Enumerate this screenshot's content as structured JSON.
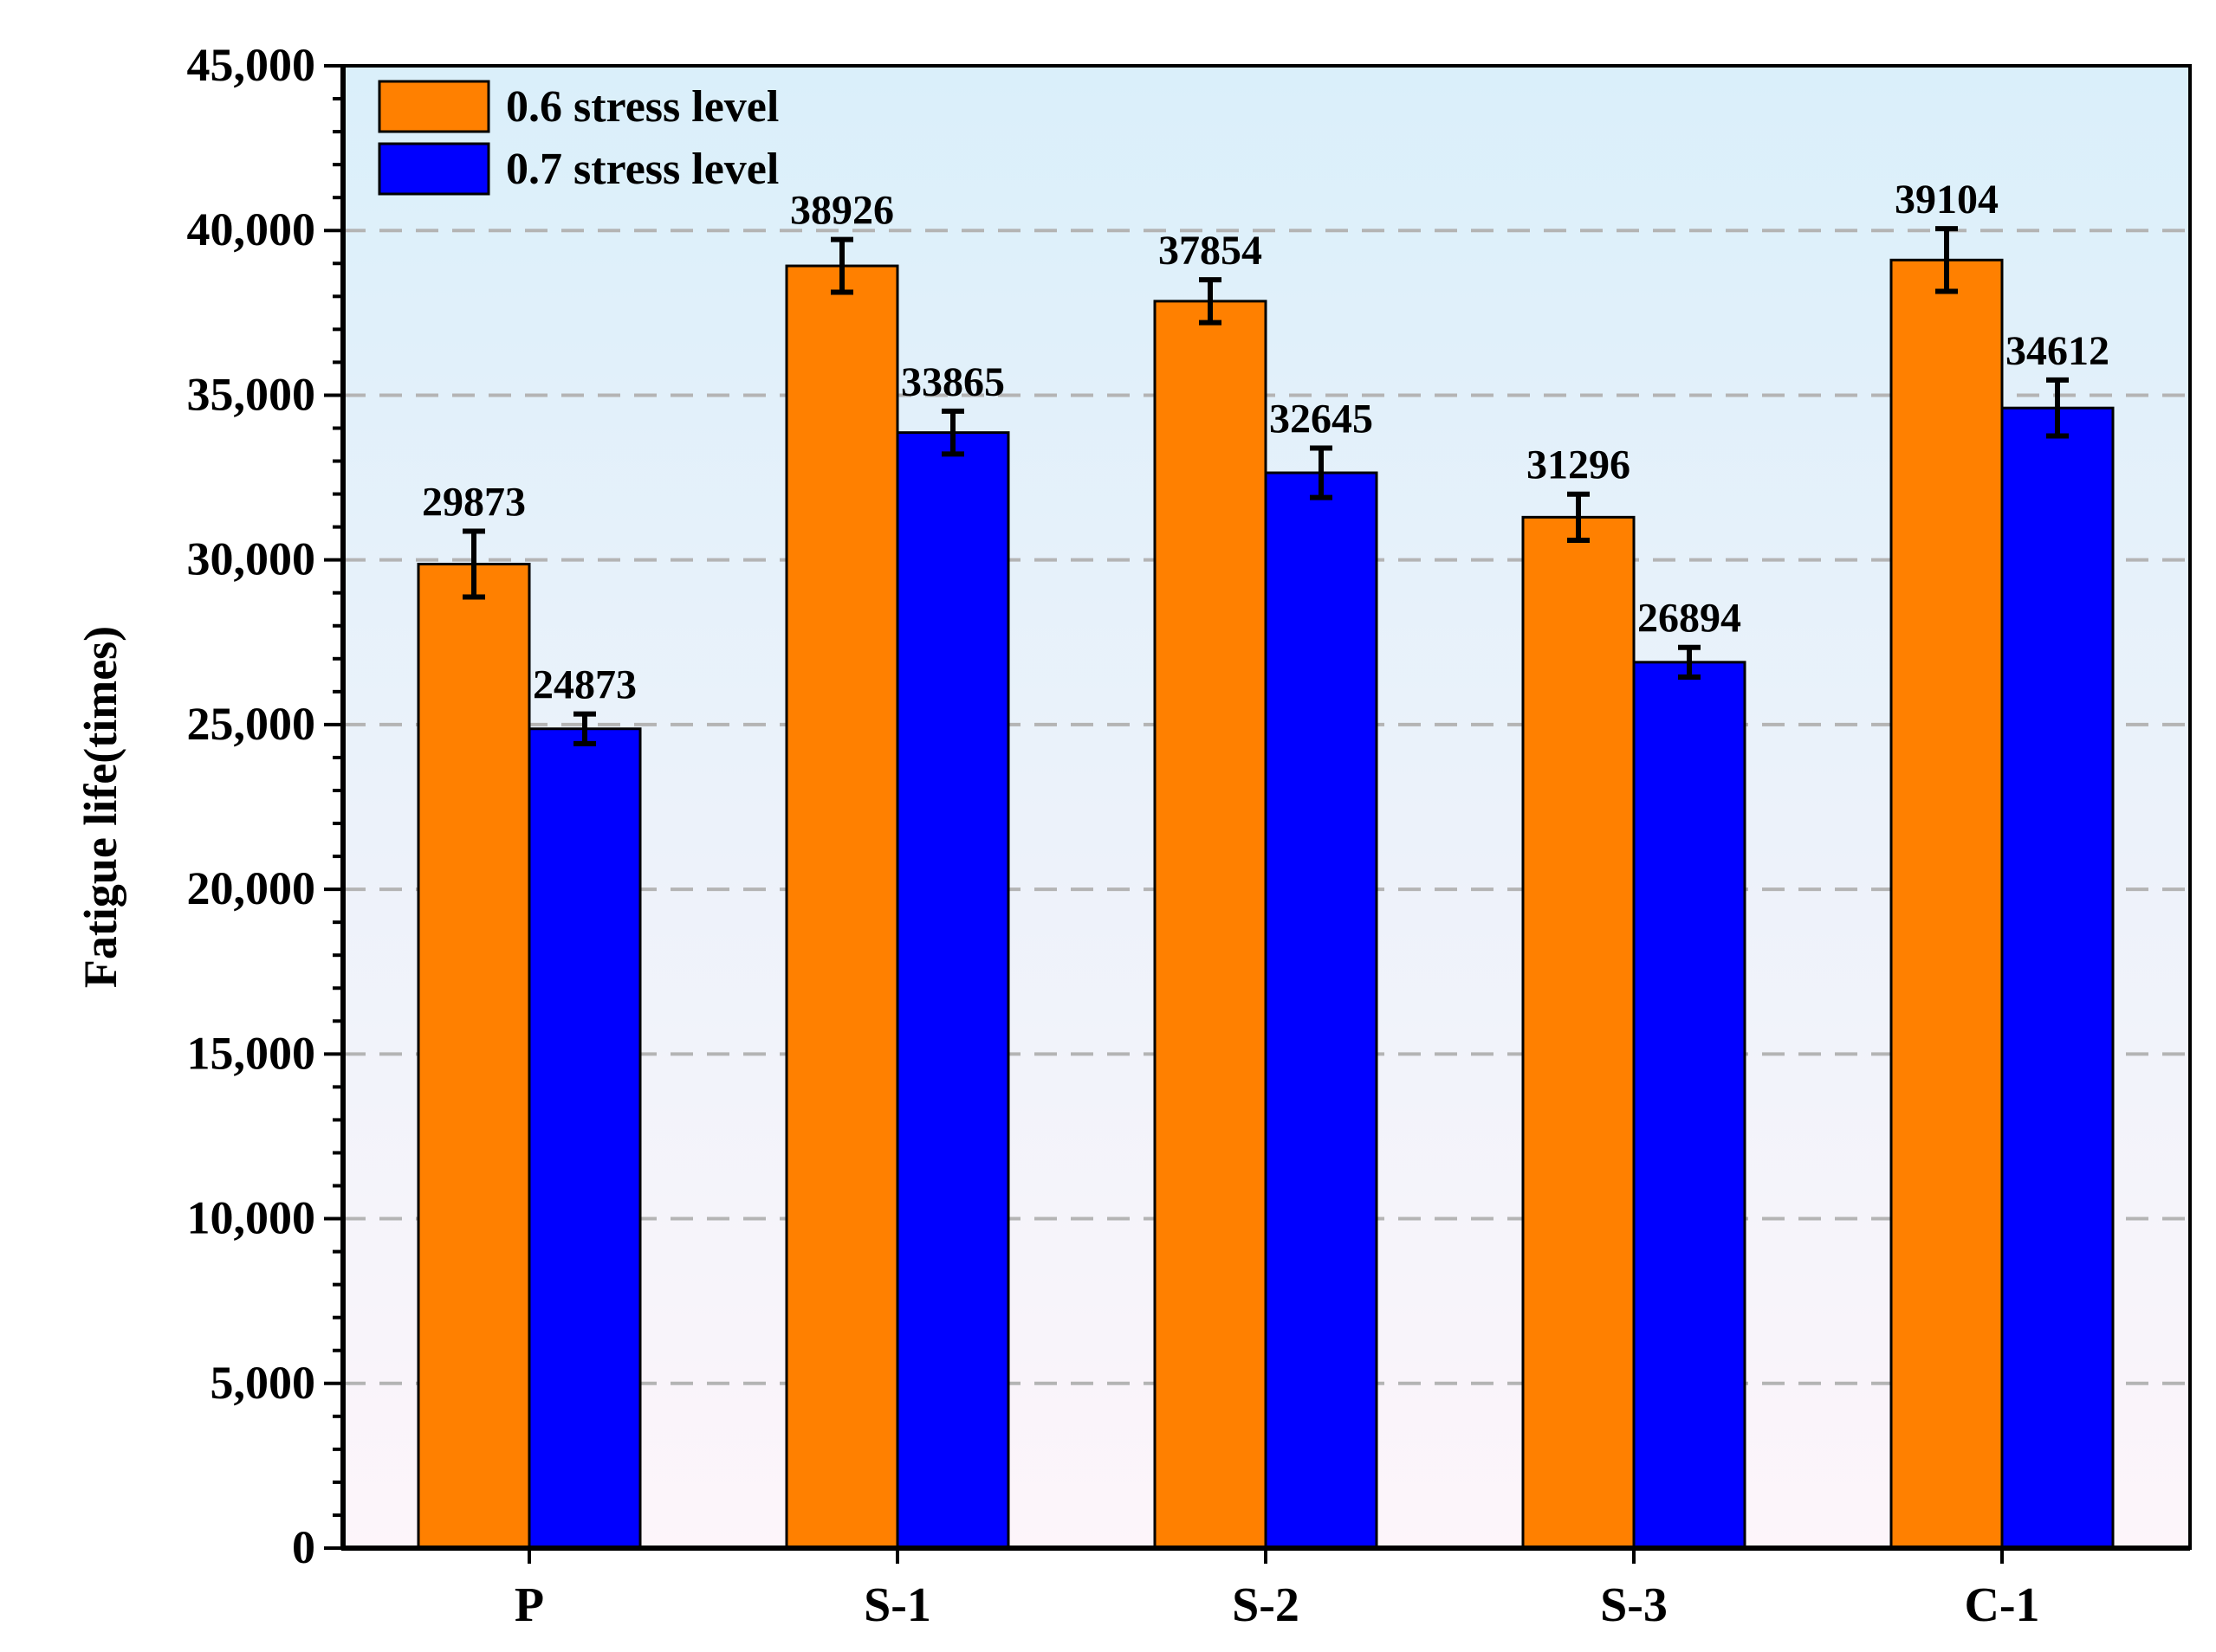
{
  "chart_data": {
    "type": "bar",
    "title": "",
    "xlabel": "",
    "ylabel": "Fatigue life(times)",
    "ylim": [
      0,
      45000
    ],
    "y_major_step": 5000,
    "y_minor_step": 1000,
    "y_tick_labels": [
      "0",
      "5,000",
      "10,000",
      "15,000",
      "20,000",
      "25,000",
      "30,000",
      "35,000",
      "40,000",
      "45,000"
    ],
    "grid": "horizontal dashed",
    "legend_position": "top-left",
    "categories": [
      "P",
      "S-1",
      "S-2",
      "S-3",
      "C-1"
    ],
    "series": [
      {
        "name": "0.6 stress level",
        "color": "#ff8000",
        "values": [
          29873,
          38926,
          37854,
          31296,
          39104
        ],
        "labels": [
          "29873",
          "38926",
          "37854",
          "31296",
          "39104"
        ],
        "errors": [
          1000,
          800,
          650,
          700,
          950
        ]
      },
      {
        "name": "0.7 stress level",
        "color": "#0000ff",
        "values": [
          24873,
          33865,
          32645,
          26894,
          34612
        ],
        "labels": [
          "24873",
          "33865",
          "32645",
          "26894",
          "34612"
        ],
        "errors": [
          450,
          650,
          750,
          450,
          850
        ]
      }
    ]
  }
}
